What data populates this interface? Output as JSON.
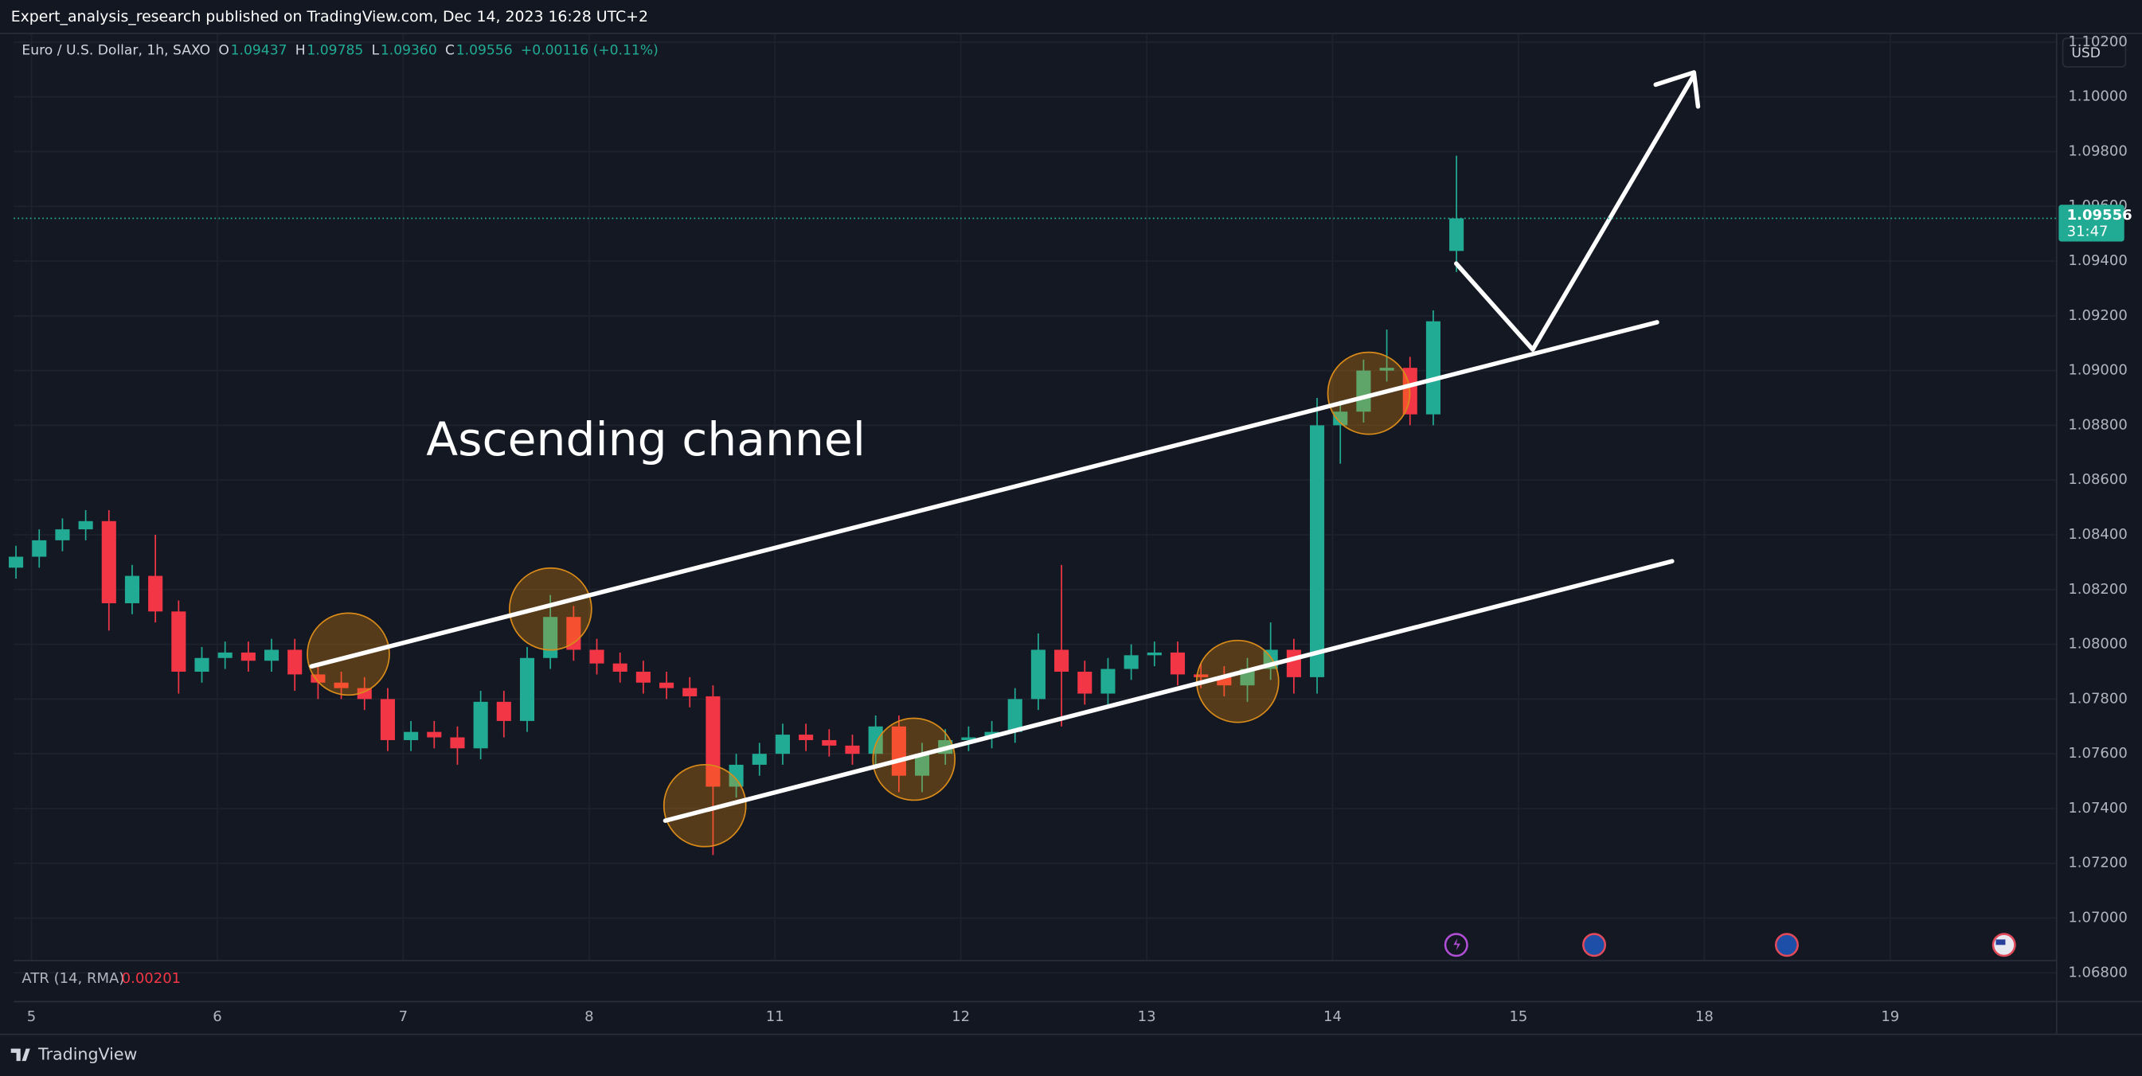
{
  "header": {
    "publisher": "Expert_analysis_research published on TradingView.com, Dec 14, 2023 16:28 UTC+2",
    "brand": "TradingView",
    "currency_button": "USD"
  },
  "legend": {
    "symbol": "Euro / U.S. Dollar, 1h, SAXO",
    "open_label": "O",
    "open": "1.09437",
    "high_label": "H",
    "high": "1.09785",
    "low_label": "L",
    "low": "1.09360",
    "close_label": "C",
    "close": "1.09556",
    "change": "+0.00116 (+0.11%)"
  },
  "indicator": {
    "name": "ATR (14, RMA)",
    "value": "0.00201"
  },
  "chart_data": {
    "type": "candlestick",
    "annotation": "Ascending channel",
    "last_price_label": "1.09556",
    "countdown": "31:47",
    "up_color": "#22ab94",
    "down_color": "#f23645",
    "grid": true,
    "x": [
      0,
      3,
      6,
      9,
      12,
      15,
      18,
      21,
      24,
      27,
      30,
      33,
      36,
      39,
      42,
      45,
      48,
      51,
      54,
      57,
      60,
      63,
      66,
      69,
      72,
      75,
      78,
      81,
      84,
      87,
      90,
      93,
      96,
      99,
      102,
      105,
      108,
      111,
      114,
      117,
      120,
      123,
      126,
      129,
      132,
      135,
      138,
      141,
      144,
      147,
      150,
      153,
      156,
      159,
      162,
      165,
      168,
      171,
      174,
      177,
      180,
      183,
      186
    ],
    "open": [
      1.0828,
      1.0832,
      1.0838,
      1.0842,
      1.0845,
      1.0815,
      1.0825,
      1.0812,
      1.079,
      1.0795,
      1.0797,
      1.0794,
      1.0798,
      1.0789,
      1.0786,
      1.0784,
      1.078,
      1.0765,
      1.0768,
      1.0766,
      1.0762,
      1.0779,
      1.0772,
      1.0795,
      1.081,
      1.0798,
      1.0793,
      1.079,
      1.0786,
      1.0784,
      1.0781,
      1.0748,
      1.0756,
      1.076,
      1.0767,
      1.0765,
      1.0763,
      1.076,
      1.077,
      1.0752,
      1.076,
      1.0765,
      1.0766,
      1.0768,
      1.078,
      1.0798,
      1.079,
      1.0782,
      1.0791,
      1.0796,
      1.0797,
      1.0789,
      1.0788,
      1.0785,
      1.0791,
      1.0798,
      1.0788,
      1.088,
      1.0885,
      1.09,
      1.0901,
      1.0884,
      1.09437
    ],
    "high": [
      1.0836,
      1.0842,
      1.0846,
      1.0849,
      1.0849,
      1.0829,
      1.084,
      1.0816,
      1.0799,
      1.0801,
      1.0801,
      1.0802,
      1.0802,
      1.0793,
      1.079,
      1.0788,
      1.0784,
      1.0772,
      1.0772,
      1.077,
      1.0783,
      1.0783,
      1.0799,
      1.0818,
      1.0814,
      1.0802,
      1.0797,
      1.0794,
      1.079,
      1.0788,
      1.0785,
      1.076,
      1.0764,
      1.0771,
      1.0771,
      1.0769,
      1.0767,
      1.0774,
      1.0774,
      1.0764,
      1.0769,
      1.077,
      1.0772,
      1.0784,
      1.0804,
      1.0829,
      1.0794,
      1.0795,
      1.08,
      1.0801,
      1.0801,
      1.0793,
      1.0792,
      1.0795,
      1.0808,
      1.0802,
      1.089,
      1.0889,
      1.0904,
      1.0915,
      1.0905,
      1.0922,
      1.09785
    ],
    "low": [
      1.0824,
      1.0828,
      1.0834,
      1.0838,
      1.0805,
      1.0811,
      1.0808,
      1.0782,
      1.0786,
      1.0791,
      1.079,
      1.079,
      1.0783,
      1.078,
      1.078,
      1.0776,
      1.0761,
      1.0761,
      1.0762,
      1.0756,
      1.0758,
      1.0766,
      1.0768,
      1.0791,
      1.0794,
      1.0789,
      1.0786,
      1.0782,
      1.078,
      1.0777,
      1.0723,
      1.0744,
      1.0752,
      1.0756,
      1.0761,
      1.0759,
      1.0756,
      1.0756,
      1.0746,
      1.0746,
      1.0756,
      1.0761,
      1.0762,
      1.0764,
      1.0776,
      1.077,
      1.0778,
      1.0778,
      1.0787,
      1.0792,
      1.0785,
      1.0784,
      1.0781,
      1.0779,
      1.0787,
      1.0782,
      1.0782,
      1.0866,
      1.0881,
      1.0896,
      1.088,
      1.088,
      1.0936
    ],
    "close": [
      1.0832,
      1.0838,
      1.0842,
      1.0845,
      1.0815,
      1.0825,
      1.0812,
      1.079,
      1.0795,
      1.0797,
      1.0794,
      1.0798,
      1.0789,
      1.0786,
      1.0784,
      1.078,
      1.0765,
      1.0768,
      1.0766,
      1.0762,
      1.0779,
      1.0772,
      1.0795,
      1.081,
      1.0798,
      1.0793,
      1.079,
      1.0786,
      1.0784,
      1.0781,
      1.0748,
      1.0756,
      1.076,
      1.0767,
      1.0765,
      1.0763,
      1.076,
      1.077,
      1.0752,
      1.076,
      1.0765,
      1.0766,
      1.0768,
      1.078,
      1.0798,
      1.079,
      1.0782,
      1.0791,
      1.0796,
      1.0797,
      1.0789,
      1.0788,
      1.0785,
      1.0791,
      1.0798,
      1.0788,
      1.088,
      1.0885,
      1.09,
      1.0901,
      1.0884,
      1.0918,
      1.09556
    ],
    "xlim": [
      -0.3,
      263.4
    ],
    "xticks": [
      {
        "value": 2,
        "label": "5"
      },
      {
        "value": 26,
        "label": "6"
      },
      {
        "value": 50,
        "label": "7"
      },
      {
        "value": 74,
        "label": "8"
      },
      {
        "value": 98,
        "label": "11"
      },
      {
        "value": 122,
        "label": "12"
      },
      {
        "value": 146,
        "label": "13"
      },
      {
        "value": 170,
        "label": "14"
      },
      {
        "value": 194,
        "label": "15"
      },
      {
        "value": 218,
        "label": "18"
      },
      {
        "value": 242,
        "label": "19"
      }
    ],
    "ylim": [
      1.06847,
      1.10234
    ],
    "yticks": [
      {
        "value": 1.068,
        "label": "1.06800"
      },
      {
        "value": 1.07,
        "label": "1.07000"
      },
      {
        "value": 1.072,
        "label": "1.07200"
      },
      {
        "value": 1.074,
        "label": "1.07400"
      },
      {
        "value": 1.076,
        "label": "1.07600"
      },
      {
        "value": 1.078,
        "label": "1.07800"
      },
      {
        "value": 1.08,
        "label": "1.08000"
      },
      {
        "value": 1.082,
        "label": "1.08200"
      },
      {
        "value": 1.084,
        "label": "1.08400"
      },
      {
        "value": 1.086,
        "label": "1.08600"
      },
      {
        "value": 1.088,
        "label": "1.08800"
      },
      {
        "value": 1.09,
        "label": "1.09000"
      },
      {
        "value": 1.092,
        "label": "1.09200"
      },
      {
        "value": 1.094,
        "label": "1.09400"
      },
      {
        "value": 1.096,
        "label": "1.09600"
      },
      {
        "value": 1.098,
        "label": "1.09800"
      },
      {
        "value": 1.1,
        "label": "1.10000"
      },
      {
        "value": 1.102,
        "label": "1.10200"
      }
    ]
  }
}
